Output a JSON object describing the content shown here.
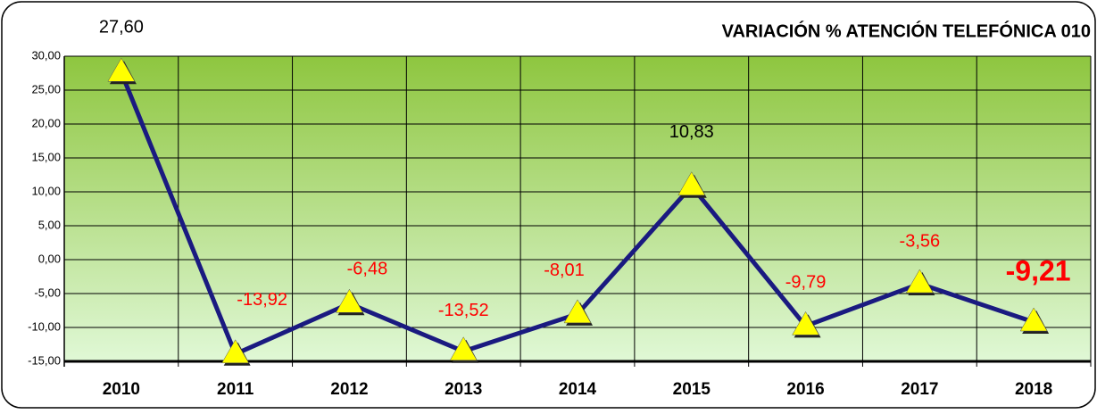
{
  "chart_data": {
    "type": "line",
    "title": "VARIACIÓN % ATENCIÓN TELEFÓNICA 010",
    "categories": [
      "2010",
      "2011",
      "2012",
      "2013",
      "2014",
      "2015",
      "2016",
      "2017",
      "2018"
    ],
    "series": [
      {
        "color": "#1a1a80",
        "marker_color": "#ffff00",
        "values": [
          27.6,
          -13.92,
          -6.48,
          -13.52,
          -8.01,
          10.83,
          -9.79,
          -3.56,
          -9.21
        ],
        "value_labels": [
          "27,60",
          "-13,92",
          "-6,48",
          "-13,52",
          "-8,01",
          "10,83",
          "-9,79",
          "-3,56",
          "-9,21"
        ]
      }
    ],
    "ylim": [
      -15,
      30
    ],
    "yticks": [
      {
        "value": -15,
        "label": "-15,00"
      },
      {
        "value": -10,
        "label": "-10,00"
      },
      {
        "value": -5,
        "label": "-5,00"
      },
      {
        "value": 0,
        "label": "0,00"
      },
      {
        "value": 5,
        "label": "5,00"
      },
      {
        "value": 10,
        "label": "10,00"
      },
      {
        "value": 15,
        "label": "15,00"
      },
      {
        "value": 20,
        "label": "20,00"
      },
      {
        "value": 25,
        "label": "25,00"
      },
      {
        "value": 30,
        "label": "30,00"
      }
    ],
    "grid": true
  }
}
